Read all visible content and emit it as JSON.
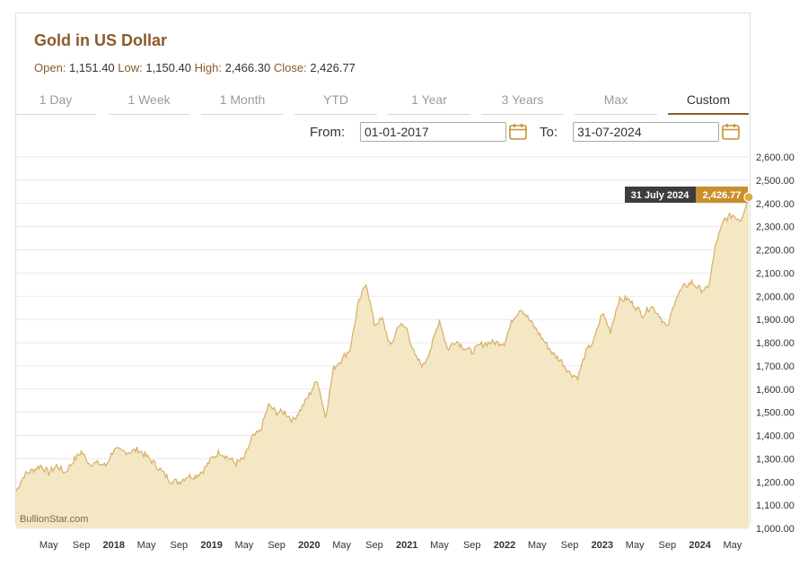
{
  "header": {
    "title": "Gold in US Dollar",
    "stats": {
      "open_label": "Open:",
      "open": "1,151.40",
      "low_label": "Low:",
      "low": "1,150.40",
      "high_label": "High:",
      "high": "2,466.30",
      "close_label": "Close:",
      "close": "2,426.77"
    }
  },
  "tabs": [
    {
      "label": "1 Day",
      "active": false
    },
    {
      "label": "1 Week",
      "active": false
    },
    {
      "label": "1 Month",
      "active": false
    },
    {
      "label": "YTD",
      "active": false
    },
    {
      "label": "1 Year",
      "active": false
    },
    {
      "label": "3 Years",
      "active": false
    },
    {
      "label": "Max",
      "active": false
    },
    {
      "label": "Custom",
      "active": true
    }
  ],
  "range": {
    "from_label": "From:",
    "from_value": "01-01-2017",
    "to_label": "To:",
    "to_value": "31-07-2024"
  },
  "tooltip": {
    "date": "31 July 2024",
    "value": "2,426.77"
  },
  "watermark": "BullionStar.com",
  "colors": {
    "accent": "#8a5a2b",
    "line": "#d7ae6a",
    "fill": "#f3e8c3",
    "tooltip_date_bg": "#3d3d3d",
    "tooltip_value_bg": "#c98f2b"
  },
  "chart_data": {
    "type": "area",
    "title": "Gold in US Dollar",
    "x_start": "2017-01",
    "x_end": "2024-07",
    "ylim": [
      1000,
      2600
    ],
    "yticks": [
      "1,000.00",
      "1,100.00",
      "1,200.00",
      "1,300.00",
      "1,400.00",
      "1,500.00",
      "1,600.00",
      "1,700.00",
      "1,800.00",
      "1,900.00",
      "2,000.00",
      "2,100.00",
      "2,200.00",
      "2,300.00",
      "2,400.00",
      "2,500.00",
      "2,600.00"
    ],
    "xticks": [
      {
        "label": "May",
        "bold": false
      },
      {
        "label": "Sep",
        "bold": false
      },
      {
        "label": "2018",
        "bold": true
      },
      {
        "label": "May",
        "bold": false
      },
      {
        "label": "Sep",
        "bold": false
      },
      {
        "label": "2019",
        "bold": true
      },
      {
        "label": "May",
        "bold": false
      },
      {
        "label": "Sep",
        "bold": false
      },
      {
        "label": "2020",
        "bold": true
      },
      {
        "label": "May",
        "bold": false
      },
      {
        "label": "Sep",
        "bold": false
      },
      {
        "label": "2021",
        "bold": true
      },
      {
        "label": "May",
        "bold": false
      },
      {
        "label": "Sep",
        "bold": false
      },
      {
        "label": "2022",
        "bold": true
      },
      {
        "label": "May",
        "bold": false
      },
      {
        "label": "Sep",
        "bold": false
      },
      {
        "label": "2023",
        "bold": true
      },
      {
        "label": "May",
        "bold": false
      },
      {
        "label": "Sep",
        "bold": false
      },
      {
        "label": "2024",
        "bold": true
      },
      {
        "label": "May",
        "bold": false
      }
    ],
    "grid": true,
    "series": [
      {
        "dates": [
          "2017-01",
          "2017-02",
          "2017-03",
          "2017-04",
          "2017-05",
          "2017-06",
          "2017-07",
          "2017-08",
          "2017-09",
          "2017-10",
          "2017-11",
          "2017-12",
          "2018-01",
          "2018-02",
          "2018-03",
          "2018-04",
          "2018-05",
          "2018-06",
          "2018-07",
          "2018-08",
          "2018-09",
          "2018-10",
          "2018-11",
          "2018-12",
          "2019-01",
          "2019-02",
          "2019-03",
          "2019-04",
          "2019-05",
          "2019-06",
          "2019-07",
          "2019-08",
          "2019-09",
          "2019-10",
          "2019-11",
          "2019-12",
          "2020-01",
          "2020-02",
          "2020-03",
          "2020-04",
          "2020-05",
          "2020-06",
          "2020-07",
          "2020-08",
          "2020-09",
          "2020-10",
          "2020-11",
          "2020-12",
          "2021-01",
          "2021-02",
          "2021-03",
          "2021-04",
          "2021-05",
          "2021-06",
          "2021-07",
          "2021-08",
          "2021-09",
          "2021-10",
          "2021-11",
          "2021-12",
          "2022-01",
          "2022-02",
          "2022-03",
          "2022-04",
          "2022-05",
          "2022-06",
          "2022-07",
          "2022-08",
          "2022-09",
          "2022-10",
          "2022-11",
          "2022-12",
          "2023-01",
          "2023-02",
          "2023-03",
          "2023-04",
          "2023-05",
          "2023-06",
          "2023-07",
          "2023-08",
          "2023-09",
          "2023-10",
          "2023-11",
          "2023-12",
          "2024-01",
          "2024-02",
          "2024-03",
          "2024-04",
          "2024-05",
          "2024-06",
          "2024-07"
        ],
        "values": [
          1160,
          1230,
          1250,
          1270,
          1240,
          1270,
          1240,
          1290,
          1330,
          1280,
          1280,
          1270,
          1340,
          1330,
          1330,
          1340,
          1310,
          1280,
          1240,
          1205,
          1200,
          1225,
          1225,
          1250,
          1300,
          1330,
          1305,
          1280,
          1300,
          1390,
          1420,
          1530,
          1500,
          1500,
          1465,
          1515,
          1575,
          1640,
          1480,
          1690,
          1730,
          1770,
          1960,
          2060,
          1880,
          1900,
          1780,
          1880,
          1860,
          1740,
          1700,
          1780,
          1900,
          1770,
          1810,
          1780,
          1760,
          1790,
          1800,
          1800,
          1800,
          1900,
          1950,
          1900,
          1850,
          1800,
          1750,
          1720,
          1670,
          1650,
          1760,
          1810,
          1930,
          1850,
          1980,
          1990,
          1960,
          1920,
          1960,
          1920,
          1860,
          1990,
          2040,
          2060,
          2030,
          2030,
          2230,
          2330,
          2350,
          2330,
          2426.77
        ]
      }
    ]
  }
}
